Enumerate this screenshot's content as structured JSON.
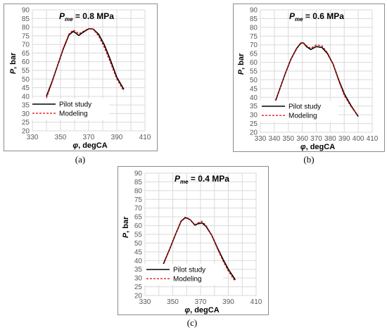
{
  "figure": {
    "captions": [
      "(a)",
      "(b)",
      "(c)"
    ]
  },
  "colors": {
    "pilot": "#000000",
    "modeling": "#e00000",
    "grid": "#d9d9d9",
    "frame": "#8c8c8c"
  },
  "chart_data": [
    {
      "type": "line",
      "title_main": "P",
      "title_sub": "me",
      "title_value": " = 0.8 MPa",
      "xlabel_main": "φ",
      "xlabel_rest": ", degCA",
      "ylabel_main": "P",
      "ylabel_rest": ", bar",
      "xlim": [
        330,
        410
      ],
      "ylim": [
        20,
        90
      ],
      "xticks": [
        330,
        350,
        370,
        390,
        410
      ],
      "yticks": [
        20,
        25,
        30,
        35,
        40,
        45,
        50,
        55,
        60,
        65,
        70,
        75,
        80,
        85,
        90
      ],
      "grid": true,
      "legend_position": "lower-center",
      "series": [
        {
          "name": "Pilot study",
          "style": "solid",
          "x": [
            340,
            344,
            348,
            352,
            356,
            359,
            361,
            363,
            366,
            370,
            373,
            377,
            381,
            385,
            390,
            395
          ],
          "y": [
            40,
            48.5,
            58,
            67.5,
            75.5,
            77.5,
            76.5,
            75.2,
            77,
            79,
            79,
            76,
            70,
            62,
            51,
            44
          ]
        },
        {
          "name": "Modeling",
          "style": "dashed",
          "x": [
            340,
            344,
            348,
            352,
            356,
            359,
            361,
            363,
            366,
            370,
            373,
            377,
            381,
            385,
            390,
            395
          ],
          "y": [
            39,
            48,
            58,
            68,
            76,
            78.3,
            77.5,
            76.2,
            77.5,
            79.2,
            79,
            75,
            68.5,
            60.5,
            50,
            43
          ]
        }
      ]
    },
    {
      "type": "line",
      "title_main": "P",
      "title_sub": "me",
      "title_value": " = 0.6 MPa",
      "xlabel_main": "φ",
      "xlabel_rest": ", degCA",
      "ylabel_main": "P",
      "ylabel_rest": ", bar",
      "xlim": [
        330,
        410
      ],
      "ylim": [
        20,
        90
      ],
      "xticks": [
        330,
        340,
        350,
        360,
        370,
        380,
        390,
        400,
        410
      ],
      "yticks": [
        20,
        25,
        30,
        35,
        40,
        45,
        50,
        55,
        60,
        65,
        70,
        75,
        80,
        85,
        90
      ],
      "grid": true,
      "legend_position": "lower-center",
      "series": [
        {
          "name": "Pilot study",
          "style": "solid",
          "x": [
            340,
            344,
            348,
            352,
            356,
            359,
            361,
            363,
            366,
            370,
            374,
            378,
            382,
            386,
            390,
            395,
            400
          ],
          "y": [
            36,
            45,
            54,
            62,
            68,
            71,
            71,
            69,
            67.3,
            69,
            68.5,
            65,
            59,
            50,
            42,
            35,
            29
          ]
        },
        {
          "name": "Modeling",
          "style": "dashed",
          "x": [
            340,
            344,
            348,
            352,
            356,
            359,
            361,
            363,
            366,
            370,
            374,
            378,
            382,
            386,
            390,
            395,
            400
          ],
          "y": [
            35.5,
            45,
            54,
            62,
            68.3,
            71.2,
            70.8,
            69.5,
            68,
            70,
            69.5,
            65.5,
            59,
            49.5,
            41,
            34.5,
            29.5
          ]
        }
      ]
    },
    {
      "type": "line",
      "title_main": "P",
      "title_sub": "me",
      "title_value": " = 0.4 MPa",
      "xlabel_main": "φ",
      "xlabel_rest": ", degCA",
      "ylabel_main": "P",
      "ylabel_rest": ", bar",
      "xlim": [
        330,
        410
      ],
      "ylim": [
        20,
        90
      ],
      "xticks": [
        330,
        350,
        370,
        390,
        410
      ],
      "yticks": [
        20,
        25,
        30,
        35,
        40,
        45,
        50,
        55,
        60,
        65,
        70,
        75,
        80,
        85,
        90
      ],
      "grid": true,
      "legend_position": "lower-center",
      "series": [
        {
          "name": "Pilot study",
          "style": "solid",
          "x": [
            340,
            344,
            348,
            352,
            356,
            359,
            361,
            363,
            366,
            368,
            371,
            374,
            378,
            382,
            386,
            390,
            395
          ],
          "y": [
            32,
            39.5,
            47,
            55,
            62.5,
            64.5,
            64,
            63,
            60.2,
            61,
            61.5,
            59.5,
            54.5,
            47.5,
            41,
            35,
            29
          ]
        },
        {
          "name": "Modeling",
          "style": "dashed",
          "x": [
            340,
            344,
            348,
            352,
            356,
            359,
            361,
            363,
            366,
            368,
            371,
            374,
            378,
            382,
            386,
            390,
            395
          ],
          "y": [
            31,
            39,
            47,
            55,
            62.7,
            64.8,
            64.2,
            63,
            60.5,
            61.5,
            62.5,
            60,
            54.5,
            47,
            40,
            34,
            28
          ]
        }
      ]
    }
  ]
}
